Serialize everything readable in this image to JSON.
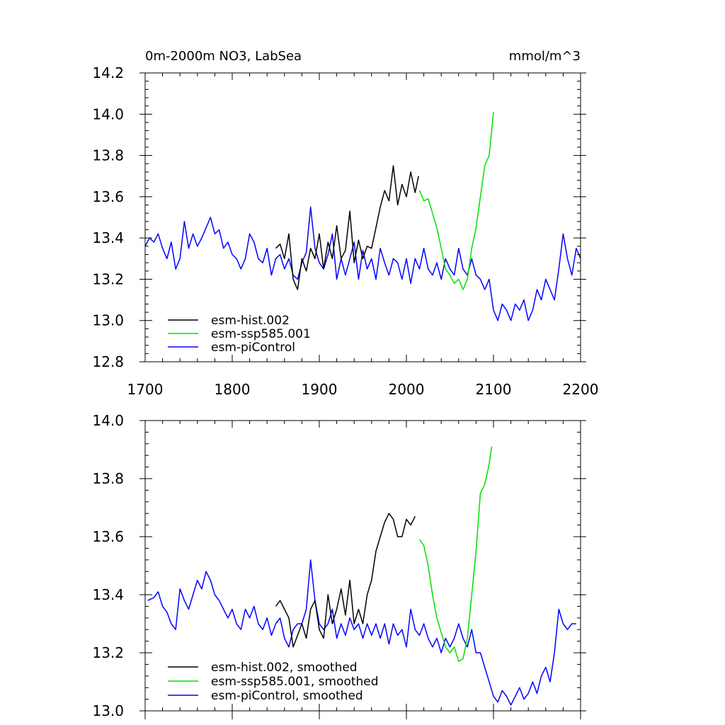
{
  "chart_data": [
    {
      "type": "line",
      "title": "0m-2000m NO3, LabSea",
      "units": "mmol/m^3",
      "xlim": [
        1700,
        2200
      ],
      "ylim": [
        12.8,
        14.2
      ],
      "xticks": [
        "1700",
        "1800",
        "1900",
        "2000",
        "2100",
        "2200"
      ],
      "yticks": [
        "12.8",
        "13.0",
        "13.2",
        "13.4",
        "13.6",
        "13.8",
        "14.0",
        "14.2"
      ],
      "series": [
        {
          "name": "esm-hist.002",
          "color": "#000000",
          "x": [
            1850,
            1855,
            1860,
            1865,
            1870,
            1875,
            1880,
            1885,
            1890,
            1895,
            1900,
            1905,
            1910,
            1915,
            1920,
            1925,
            1930,
            1935,
            1940,
            1945,
            1950,
            1955,
            1960,
            1965,
            1970,
            1975,
            1980,
            1985,
            1990,
            1995,
            2000,
            2005,
            2010,
            2014
          ],
          "y": [
            13.35,
            13.37,
            13.3,
            13.42,
            13.2,
            13.15,
            13.3,
            13.24,
            13.35,
            13.3,
            13.42,
            13.25,
            13.38,
            13.3,
            13.46,
            13.3,
            13.34,
            13.53,
            13.28,
            13.39,
            13.3,
            13.36,
            13.35,
            13.45,
            13.55,
            13.63,
            13.58,
            13.75,
            13.56,
            13.66,
            13.6,
            13.72,
            13.62,
            13.7
          ]
        },
        {
          "name": "esm-ssp585.001",
          "color": "#00e000",
          "x": [
            2015,
            2020,
            2025,
            2030,
            2035,
            2040,
            2045,
            2050,
            2055,
            2060,
            2065,
            2070,
            2075,
            2080,
            2085,
            2090,
            2095,
            2100
          ],
          "y": [
            13.63,
            13.58,
            13.59,
            13.52,
            13.45,
            13.35,
            13.25,
            13.22,
            13.18,
            13.2,
            13.15,
            13.2,
            13.35,
            13.45,
            13.6,
            13.75,
            13.8,
            14.01
          ]
        },
        {
          "name": "esm-piControl",
          "color": "#0000ff",
          "x": [
            1700,
            1705,
            1710,
            1715,
            1720,
            1725,
            1730,
            1735,
            1740,
            1745,
            1750,
            1755,
            1760,
            1765,
            1770,
            1775,
            1780,
            1785,
            1790,
            1795,
            1800,
            1805,
            1810,
            1815,
            1820,
            1825,
            1830,
            1835,
            1840,
            1845,
            1850,
            1855,
            1860,
            1865,
            1870,
            1875,
            1880,
            1885,
            1890,
            1895,
            1900,
            1905,
            1910,
            1915,
            1920,
            1925,
            1930,
            1935,
            1940,
            1945,
            1950,
            1955,
            1960,
            1965,
            1970,
            1975,
            1980,
            1985,
            1990,
            1995,
            2000,
            2005,
            2010,
            2015,
            2020,
            2025,
            2030,
            2035,
            2040,
            2045,
            2050,
            2055,
            2060,
            2065,
            2070,
            2075,
            2080,
            2085,
            2090,
            2095,
            2100,
            2105,
            2110,
            2115,
            2120,
            2125,
            2130,
            2135,
            2140,
            2145,
            2150,
            2155,
            2160,
            2165,
            2170,
            2175,
            2180,
            2185,
            2190,
            2195,
            2200
          ],
          "y": [
            13.36,
            13.4,
            13.38,
            13.42,
            13.35,
            13.3,
            13.38,
            13.25,
            13.3,
            13.48,
            13.35,
            13.42,
            13.36,
            13.4,
            13.45,
            13.5,
            13.42,
            13.44,
            13.35,
            13.38,
            13.32,
            13.3,
            13.25,
            13.3,
            13.42,
            13.38,
            13.3,
            13.28,
            13.35,
            13.22,
            13.3,
            13.32,
            13.25,
            13.3,
            13.22,
            13.2,
            13.28,
            13.33,
            13.55,
            13.35,
            13.28,
            13.25,
            13.32,
            13.42,
            13.2,
            13.3,
            13.22,
            13.3,
            13.38,
            13.2,
            13.34,
            13.25,
            13.3,
            13.2,
            13.35,
            13.28,
            13.22,
            13.3,
            13.28,
            13.2,
            13.3,
            13.18,
            13.3,
            13.25,
            13.35,
            13.25,
            13.22,
            13.28,
            13.2,
            13.3,
            13.25,
            13.22,
            13.35,
            13.25,
            13.22,
            13.3,
            13.22,
            13.2,
            13.15,
            13.2,
            13.05,
            13.0,
            13.08,
            13.05,
            13.0,
            13.08,
            13.05,
            13.1,
            13.0,
            13.05,
            13.15,
            13.1,
            13.2,
            13.15,
            13.1,
            13.25,
            13.42,
            13.3,
            13.22,
            13.35,
            13.3
          ]
        }
      ]
    },
    {
      "type": "line",
      "xlim": [
        1700,
        2200
      ],
      "ylim": [
        13.0,
        14.0
      ],
      "xticks": [],
      "yticks": [
        "13.0",
        "13.2",
        "13.4",
        "13.6",
        "13.8",
        "14.0"
      ],
      "series": [
        {
          "name": "esm-hist.002, smoothed",
          "color": "#000000",
          "x": [
            1850,
            1855,
            1860,
            1865,
            1870,
            1875,
            1880,
            1885,
            1890,
            1895,
            1900,
            1905,
            1910,
            1915,
            1920,
            1925,
            1930,
            1935,
            1940,
            1945,
            1950,
            1955,
            1960,
            1965,
            1970,
            1975,
            1980,
            1985,
            1990,
            1995,
            2000,
            2005,
            2010
          ],
          "y": [
            13.36,
            13.38,
            13.35,
            13.32,
            13.22,
            13.26,
            13.3,
            13.25,
            13.35,
            13.38,
            13.28,
            13.25,
            13.4,
            13.3,
            13.35,
            13.42,
            13.33,
            13.45,
            13.3,
            13.35,
            13.3,
            13.4,
            13.45,
            13.55,
            13.6,
            13.65,
            13.68,
            13.66,
            13.6,
            13.6,
            13.66,
            13.64,
            13.67
          ]
        },
        {
          "name": "esm-ssp585.001, smoothed",
          "color": "#00e000",
          "x": [
            2015,
            2020,
            2025,
            2030,
            2035,
            2040,
            2045,
            2050,
            2055,
            2060,
            2065,
            2070,
            2075,
            2080,
            2085,
            2090,
            2095,
            2098
          ],
          "y": [
            13.59,
            13.57,
            13.5,
            13.4,
            13.32,
            13.27,
            13.22,
            13.2,
            13.22,
            13.17,
            13.18,
            13.25,
            13.4,
            13.55,
            13.75,
            13.78,
            13.85,
            13.91
          ]
        },
        {
          "name": "esm-piControl, smoothed",
          "color": "#0000ff",
          "x": [
            1703,
            1710,
            1715,
            1720,
            1725,
            1730,
            1735,
            1740,
            1745,
            1750,
            1755,
            1760,
            1765,
            1770,
            1775,
            1780,
            1785,
            1790,
            1795,
            1800,
            1805,
            1810,
            1815,
            1820,
            1825,
            1830,
            1835,
            1840,
            1845,
            1850,
            1855,
            1860,
            1865,
            1870,
            1875,
            1880,
            1885,
            1890,
            1895,
            1900,
            1905,
            1910,
            1915,
            1920,
            1925,
            1930,
            1935,
            1940,
            1945,
            1950,
            1955,
            1960,
            1965,
            1970,
            1975,
            1980,
            1985,
            1990,
            1995,
            2000,
            2005,
            2010,
            2015,
            2020,
            2025,
            2030,
            2035,
            2040,
            2045,
            2050,
            2055,
            2060,
            2065,
            2070,
            2075,
            2080,
            2085,
            2090,
            2095,
            2100,
            2105,
            2110,
            2115,
            2120,
            2125,
            2130,
            2135,
            2140,
            2145,
            2150,
            2155,
            2160,
            2165,
            2170,
            2175,
            2180,
            2185,
            2190,
            2195
          ],
          "y": [
            13.38,
            13.39,
            13.41,
            13.36,
            13.34,
            13.3,
            13.28,
            13.42,
            13.38,
            13.35,
            13.4,
            13.45,
            13.42,
            13.48,
            13.45,
            13.4,
            13.38,
            13.35,
            13.32,
            13.35,
            13.3,
            13.28,
            13.35,
            13.32,
            13.36,
            13.3,
            13.28,
            13.32,
            13.26,
            13.3,
            13.32,
            13.25,
            13.22,
            13.28,
            13.3,
            13.3,
            13.35,
            13.52,
            13.38,
            13.3,
            13.28,
            13.3,
            13.35,
            13.25,
            13.3,
            13.26,
            13.32,
            13.28,
            13.3,
            13.25,
            13.3,
            13.26,
            13.3,
            13.25,
            13.3,
            13.23,
            13.3,
            13.26,
            13.28,
            13.22,
            13.35,
            13.28,
            13.26,
            13.3,
            13.25,
            13.22,
            13.25,
            13.2,
            13.25,
            13.22,
            13.25,
            13.3,
            13.25,
            13.22,
            13.28,
            13.2,
            13.2,
            13.15,
            13.1,
            13.05,
            13.03,
            13.07,
            13.05,
            13.02,
            13.05,
            13.08,
            13.04,
            13.06,
            13.1,
            13.06,
            13.12,
            13.15,
            13.1,
            13.2,
            13.35,
            13.3,
            13.28,
            13.3,
            13.3
          ]
        }
      ]
    }
  ]
}
